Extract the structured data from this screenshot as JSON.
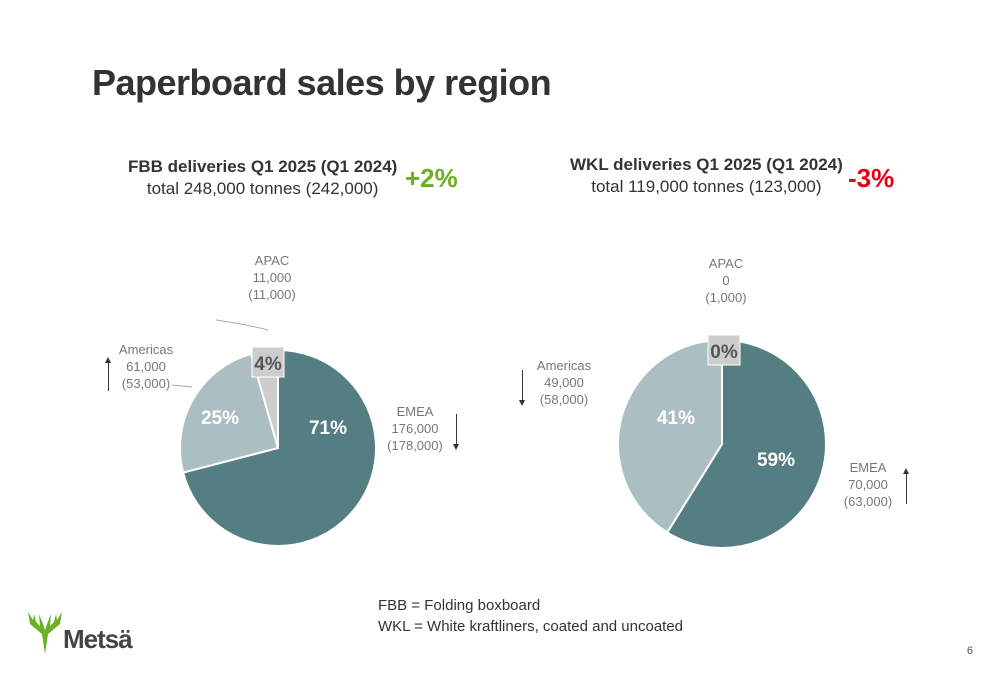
{
  "title": "Paperboard sales by region",
  "chart_data": [
    {
      "type": "pie",
      "title_line1": "FBB deliveries Q1 2025 (Q1 2024)",
      "title_line2": "total 248,000 tonnes (242,000)",
      "change": "+2%",
      "change_color": "#6ab023",
      "slices": [
        {
          "name": "EMEA",
          "value": 176000,
          "value_label": "176,000",
          "prev_label": "(178,000)",
          "percent_label": "71%",
          "percent": 71,
          "color": "#557e82",
          "trend": "down"
        },
        {
          "name": "Americas",
          "value": 61000,
          "value_label": "61,000",
          "prev_label": "(53,000)",
          "percent_label": "25%",
          "percent": 25,
          "color": "#abbec2",
          "trend": "up"
        },
        {
          "name": "APAC",
          "value": 11000,
          "value_label": "11,000",
          "prev_label": "(11,000)",
          "percent_label": "4%",
          "percent": 4,
          "color": "#cdcdcd",
          "trend": "none"
        }
      ]
    },
    {
      "type": "pie",
      "title_line1": "WKL deliveries Q1 2025 (Q1 2024)",
      "title_line2": "total 119,000 tonnes (123,000)",
      "change": "-3%",
      "change_color": "#e4001b",
      "slices": [
        {
          "name": "EMEA",
          "value": 70000,
          "value_label": "70,000",
          "prev_label": "(63,000)",
          "percent_label": "59%",
          "percent": 59,
          "color": "#557e82",
          "trend": "up"
        },
        {
          "name": "Americas",
          "value": 49000,
          "value_label": "49,000",
          "prev_label": "(58,000)",
          "percent_label": "41%",
          "percent": 41,
          "color": "#abbec2",
          "trend": "down"
        },
        {
          "name": "APAC",
          "value": 0,
          "value_label": "0",
          "prev_label": "(1,000)",
          "percent_label": "0%",
          "percent": 0,
          "color": "#cdcdcd",
          "trend": "none"
        }
      ]
    }
  ],
  "footnote": {
    "line1": "FBB = Folding boxboard",
    "line2": "WKL = White kraftliners, coated and uncoated"
  },
  "logo": {
    "text": "Metsä",
    "icon": "metsa-antler-logo",
    "color": "#6ab023"
  },
  "page_number": "6"
}
